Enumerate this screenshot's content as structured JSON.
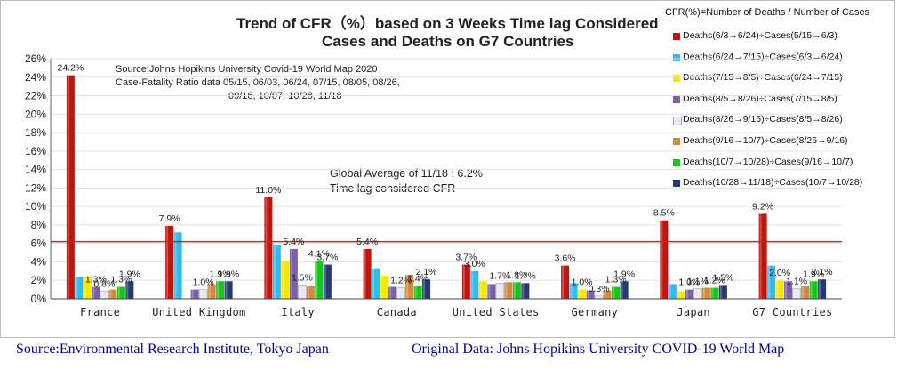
{
  "chart_data": {
    "type": "bar",
    "title_line1": "Trend of CFR（%）based on 3 Weeks Time lag Considered",
    "title_line2": "Cases and Deaths on G7 Countries",
    "ylabel": "",
    "ylim": [
      0,
      26
    ],
    "yticks": [
      "0%",
      "2%",
      "4%",
      "6%",
      "8%",
      "10%",
      "12%",
      "14%",
      "16%",
      "18%",
      "20%",
      "22%",
      "24%",
      "26%"
    ],
    "categories": [
      "France",
      "United Kingdom",
      "Italy",
      "Canada",
      "United States",
      "Germany",
      "Japan",
      "G7 Countries"
    ],
    "legend_title": "CFR(%)=Number of  Deaths / Number of Cases",
    "series": [
      {
        "name": "Deaths(6/3→6/24)÷Cases(5/15→6/3)",
        "color": "#c0140f",
        "values": [
          24.2,
          7.9,
          11.0,
          5.4,
          3.7,
          3.6,
          8.5,
          9.2
        ]
      },
      {
        "name": "Deaths(6/24→7/15)÷Cases(6/3→6/24)",
        "color": "#33bbee",
        "values": [
          2.4,
          7.2,
          5.8,
          3.3,
          3.0,
          1.7,
          1.6,
          3.6
        ]
      },
      {
        "name": "Deaths(7/15→8/5)÷Cases(6/24→7/15)",
        "color": "#f5e700",
        "values": [
          2.3,
          0.0,
          4.1,
          2.5,
          1.9,
          1.0,
          0.8,
          2.0
        ]
      },
      {
        "name": "Deaths(8/5→8/26)÷Cases(7/15→8/5)",
        "color": "#7a60a8",
        "values": [
          1.3,
          1.0,
          5.4,
          1.3,
          1.6,
          0.9,
          1.0,
          1.9
        ]
      },
      {
        "name": "Deaths(8/26→9/16)÷Cases(8/5→8/26)",
        "color": "#e8e8f0",
        "values": [
          0.8,
          1.0,
          1.5,
          1.2,
          1.7,
          0.3,
          1.1,
          1.1
        ]
      },
      {
        "name": "Deaths(9/16→10/7)÷Cases(8/26→9/16)",
        "color": "#d08a40",
        "values": [
          1.0,
          1.6,
          1.4,
          2.6,
          1.8,
          0.9,
          1.2,
          1.4
        ]
      },
      {
        "name": "Deaths(10/7→10/28)÷Cases(9/16→10/7)",
        "color": "#18c418",
        "values": [
          1.3,
          1.9,
          4.1,
          1.4,
          1.8,
          1.3,
          1.2,
          1.9
        ]
      },
      {
        "name": "Deaths(10/28→11/18)÷Cases(10/7→10/28)",
        "color": "#283870",
        "values": [
          1.9,
          1.9,
          3.7,
          2.1,
          1.7,
          1.9,
          1.5,
          2.1
        ]
      }
    ],
    "data_labels": [
      {
        "category": "France",
        "series": 0,
        "text": "24.2%"
      },
      {
        "category": "France",
        "series": 3,
        "text": "1.3%"
      },
      {
        "category": "France",
        "series": 4,
        "text": "0.8%"
      },
      {
        "category": "France",
        "series": 6,
        "text": "1.3%"
      },
      {
        "category": "France",
        "series": 7,
        "text": "1.9%"
      },
      {
        "category": "United Kingdom",
        "series": 0,
        "text": "7.9%"
      },
      {
        "category": "United Kingdom",
        "series": 4,
        "text": "1.0%"
      },
      {
        "category": "United Kingdom",
        "series": 6,
        "text": "1.9%"
      },
      {
        "category": "United Kingdom",
        "series": 7,
        "text": "1.9%"
      },
      {
        "category": "Italy",
        "series": 0,
        "text": "11.0%"
      },
      {
        "category": "Italy",
        "series": 3,
        "text": "5.4%"
      },
      {
        "category": "Italy",
        "series": 4,
        "text": "1.5%"
      },
      {
        "category": "Italy",
        "series": 6,
        "text": "4.1%"
      },
      {
        "category": "Italy",
        "series": 7,
        "text": "3.7%"
      },
      {
        "category": "Canada",
        "series": 0,
        "text": "5.4%"
      },
      {
        "category": "Canada",
        "series": 4,
        "text": "1.2%"
      },
      {
        "category": "Canada",
        "series": 6,
        "text": "1.4%"
      },
      {
        "category": "Canada",
        "series": 7,
        "text": "2.1%"
      },
      {
        "category": "United States",
        "series": 0,
        "text": "3.7%"
      },
      {
        "category": "United States",
        "series": 1,
        "text": "3.0%"
      },
      {
        "category": "United States",
        "series": 4,
        "text": "1.7%"
      },
      {
        "category": "United States",
        "series": 6,
        "text": "1.8%"
      },
      {
        "category": "United States",
        "series": 7,
        "text": "1.7%"
      },
      {
        "category": "Germany",
        "series": 0,
        "text": "3.6%"
      },
      {
        "category": "Germany",
        "series": 2,
        "text": "1.0%"
      },
      {
        "category": "Germany",
        "series": 4,
        "text": "0.3%"
      },
      {
        "category": "Germany",
        "series": 6,
        "text": "1.3%"
      },
      {
        "category": "Germany",
        "series": 7,
        "text": "1.9%"
      },
      {
        "category": "Japan",
        "series": 0,
        "text": "8.5%"
      },
      {
        "category": "Japan",
        "series": 3,
        "text": "1.0%"
      },
      {
        "category": "Japan",
        "series": 4,
        "text": "1.1%"
      },
      {
        "category": "Japan",
        "series": 6,
        "text": "1.2%"
      },
      {
        "category": "Japan",
        "series": 7,
        "text": "1.5%"
      },
      {
        "category": "G7 Countries",
        "series": 0,
        "text": "9.2%"
      },
      {
        "category": "G7 Countries",
        "series": 2,
        "text": "2.0%"
      },
      {
        "category": "G7 Countries",
        "series": 4,
        "text": "1.1%"
      },
      {
        "category": "G7 Countries",
        "series": 6,
        "text": "1.9%"
      },
      {
        "category": "G7 Countries",
        "series": 7,
        "text": "2.1%"
      }
    ],
    "reference_line": {
      "value": 6.2,
      "color": "#c03010",
      "label_line1": "Global Average of 11/18 : 6.2%",
      "label_line2": "Time lag considered CFR"
    },
    "source_note": {
      "line1": "Source:Johns Hopikins University   Covid-19 World Map 2020",
      "line2": "Case-Fatality Ratio data   05/15, 06/03, 06/24,  07/15, 08/05, 08/26,",
      "line3": "09/16, 10/07, 10/28,  11/18"
    }
  },
  "footer": {
    "left": "Source:Environmental Research Institute, Tokyo Japan",
    "right": "Original Data: Johns Hopikins University COVID-19 World Map"
  }
}
